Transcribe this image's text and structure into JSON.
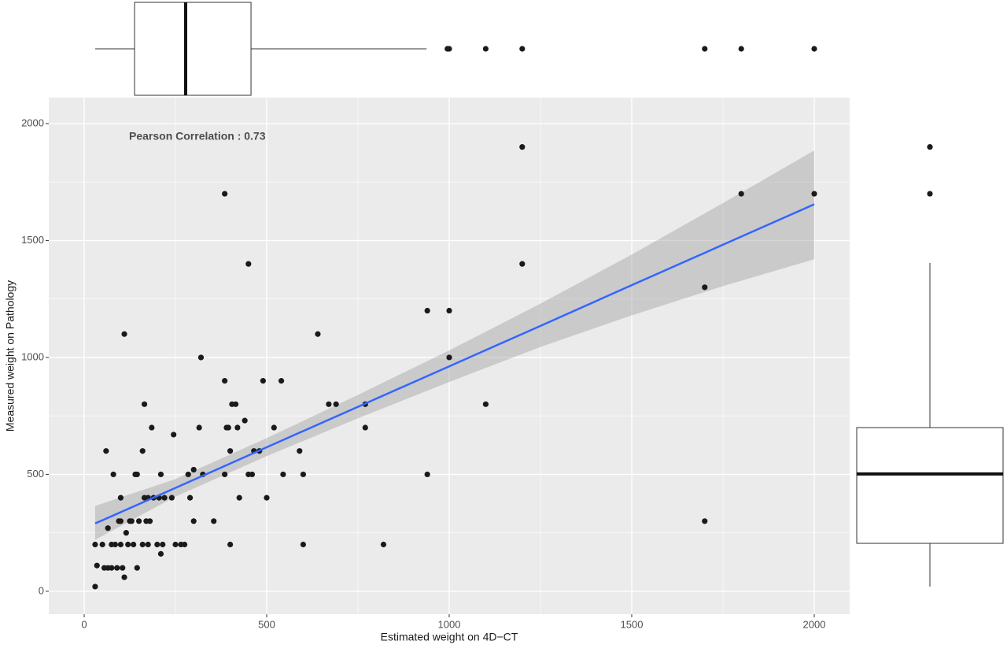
{
  "chart_data": {
    "type": "scatter",
    "annotation": "Pearson Correlation :  0.73",
    "annotation_color": "#2b3cf0",
    "x_label": "Estimated weight on 4D−CT",
    "y_label": "Measured weight on Pathology",
    "xlim": [
      -97,
      2097
    ],
    "ylim": [
      -98,
      2111
    ],
    "xticks": [
      0,
      500,
      1000,
      1500,
      2000
    ],
    "yticks": [
      0,
      500,
      1000,
      1500,
      2000
    ],
    "grid": true,
    "color": "#1a1a1a",
    "x": [
      30,
      30,
      35,
      50,
      55,
      60,
      65,
      65,
      75,
      75,
      80,
      85,
      90,
      95,
      100,
      100,
      100,
      105,
      110,
      110,
      115,
      120,
      125,
      130,
      135,
      140,
      145,
      145,
      150,
      160,
      160,
      165,
      165,
      170,
      175,
      175,
      180,
      185,
      190,
      200,
      205,
      210,
      210,
      215,
      220,
      240,
      245,
      250,
      265,
      275,
      285,
      290,
      300,
      300,
      315,
      320,
      325,
      355,
      385,
      385,
      385,
      390,
      395,
      400,
      400,
      405,
      415,
      420,
      425,
      440,
      450,
      450,
      460,
      465,
      480,
      490,
      500,
      520,
      540,
      545,
      590,
      600,
      600,
      640,
      670,
      690,
      770,
      770,
      820,
      940,
      940,
      1000,
      1000,
      1100,
      1200,
      1200,
      1700,
      1700,
      1800,
      2000
    ],
    "y": [
      20,
      200,
      110,
      200,
      100,
      600,
      270,
      100,
      100,
      200,
      500,
      200,
      100,
      300,
      300,
      200,
      400,
      100,
      60,
      1100,
      250,
      200,
      300,
      300,
      200,
      500,
      100,
      500,
      300,
      200,
      600,
      800,
      400,
      300,
      400,
      200,
      300,
      700,
      400,
      200,
      400,
      500,
      160,
      200,
      400,
      400,
      670,
      200,
      200,
      200,
      500,
      400,
      520,
      300,
      700,
      1000,
      500,
      300,
      1700,
      900,
      500,
      700,
      700,
      600,
      200,
      800,
      800,
      700,
      400,
      730,
      1400,
      500,
      500,
      600,
      600,
      900,
      400,
      700,
      900,
      500,
      600,
      500,
      200,
      1100,
      800,
      800,
      800,
      700,
      200,
      1200,
      500,
      1200,
      1000,
      800,
      1900,
      1400,
      1300,
      300,
      1700,
      1700
    ],
    "fit": {
      "color": "#3366ff",
      "band_color": "#999999",
      "x": [
        30,
        250,
        500,
        750,
        1000,
        1250,
        1500,
        1750,
        2000
      ],
      "y": [
        290,
        442,
        616,
        789,
        962,
        1135,
        1309,
        1482,
        1655
      ],
      "lower": [
        220,
        405,
        578,
        740,
        895,
        1045,
        1180,
        1305,
        1420
      ],
      "upper": [
        365,
        480,
        655,
        840,
        1030,
        1230,
        1440,
        1660,
        1885
      ]
    },
    "x_boxplot": {
      "whisker_low": 30,
      "q1": 138,
      "median": 278,
      "q3": 457,
      "whisker_high": 938,
      "outliers": [
        995,
        1000,
        1100,
        1200,
        1700,
        1800,
        2000
      ]
    },
    "y_boxplot": {
      "whisker_low": 20,
      "q1": 205,
      "median": 502,
      "q3": 700,
      "whisker_high": 1404,
      "outliers": [
        1700,
        1900
      ]
    }
  }
}
